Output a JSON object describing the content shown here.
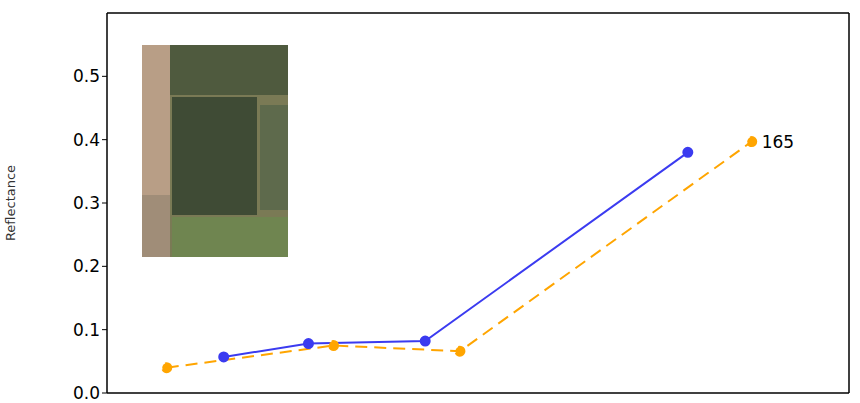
{
  "chart_data": {
    "type": "line",
    "y_label": "Reflectance",
    "xlim": [
      400,
      934
    ],
    "xticks": [
      500,
      600,
      700,
      800,
      900
    ],
    "ylim": [
      0,
      0.6
    ],
    "yticks": [
      {
        "value": 0,
        "label": "0.0"
      },
      0.1,
      0.2,
      0.3,
      0.4,
      0.5
    ],
    "tick_labels": "y",
    "grid": false,
    "series": [
      {
        "color": "#3b3bf0",
        "line_style": "solid",
        "marker": "circle",
        "x": [
          484,
          545,
          629,
          818
        ],
        "values": [
          0.057,
          0.078,
          0.082,
          0.38
        ]
      },
      {
        "color": "#ffa500",
        "line_style": "dashed",
        "marker": "circle",
        "x": [
          443,
          563,
          654,
          864
        ],
        "values": [
          0.04,
          0.075,
          0.066,
          0.397
        ]
      }
    ],
    "annotations": [
      {
        "text": "165",
        "x": 864,
        "y": 0.397
      }
    ]
  }
}
